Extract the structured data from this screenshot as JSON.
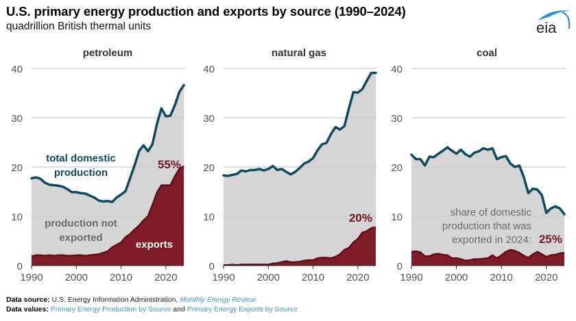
{
  "header": {
    "title": "U.S. primary energy production and exports by source (1990–2024)",
    "subtitle": "quadrillion British thermal units",
    "logo_text": "eia"
  },
  "colors": {
    "production_line": "#0d4a5f",
    "exports_fill": "#7f1c28",
    "exports_edge": "#5c1019",
    "not_exported_fill": "#d5d5d5",
    "gridline": "#dedede",
    "axis_text": "#555555",
    "panel_title": "#333333",
    "label_dark_blue": "#0d4a5f",
    "label_gray": "#6b6b6b",
    "label_red": "#6e1823",
    "link": "#3a9bd1"
  },
  "chart_data": [
    {
      "type": "area",
      "title": "petroleum",
      "xlabel": "",
      "ylabel": "",
      "x_range": [
        1990,
        2024
      ],
      "ylim": [
        0,
        40
      ],
      "yticks": [
        0,
        10,
        20,
        30,
        40
      ],
      "xticks": [
        1990,
        2000,
        2010,
        2020
      ],
      "grid": true,
      "x": [
        1990,
        1991,
        1992,
        1993,
        1994,
        1995,
        1996,
        1997,
        1998,
        1999,
        2000,
        2001,
        2002,
        2003,
        2004,
        2005,
        2006,
        2007,
        2008,
        2009,
        2010,
        2011,
        2012,
        2013,
        2014,
        2015,
        2016,
        2017,
        2018,
        2019,
        2020,
        2021,
        2022,
        2023,
        2024
      ],
      "series": [
        {
          "name": "total domestic production",
          "values": [
            17.7,
            17.9,
            17.6,
            16.8,
            16.4,
            16.3,
            16.2,
            16.0,
            15.5,
            14.9,
            14.9,
            14.7,
            14.6,
            14.2,
            13.8,
            13.2,
            13.0,
            13.1,
            12.9,
            13.8,
            14.4,
            15.1,
            17.7,
            20.3,
            23.2,
            24.4,
            23.2,
            24.6,
            28.7,
            31.9,
            30.3,
            30.4,
            32.5,
            35.2,
            36.6
          ]
        },
        {
          "name": "exports",
          "values": [
            1.9,
            2.1,
            2.1,
            2.0,
            2.1,
            2.0,
            2.1,
            2.1,
            2.0,
            2.0,
            2.1,
            2.1,
            2.0,
            2.1,
            2.2,
            2.3,
            2.6,
            2.9,
            3.7,
            4.2,
            4.7,
            5.8,
            6.4,
            7.3,
            8.1,
            9.2,
            10.0,
            12.3,
            14.8,
            16.3,
            16.3,
            16.3,
            18.1,
            19.6,
            20.2
          ]
        }
      ],
      "annotations": [
        {
          "text": "total domestic production",
          "series": "total domestic production"
        },
        {
          "text": "production not exported"
        },
        {
          "text": "exports",
          "series": "exports"
        },
        {
          "text": "55%",
          "note": "share exported in 2024"
        }
      ]
    },
    {
      "type": "area",
      "title": "natural gas",
      "xlabel": "",
      "ylabel": "",
      "x_range": [
        1990,
        2024
      ],
      "ylim": [
        0,
        40
      ],
      "yticks": [
        0,
        10,
        20,
        30,
        40
      ],
      "xticks": [
        1990,
        2000,
        2010,
        2020
      ],
      "grid": true,
      "x": [
        1990,
        1991,
        1992,
        1993,
        1994,
        1995,
        1996,
        1997,
        1998,
        1999,
        2000,
        2001,
        2002,
        2003,
        2004,
        2005,
        2006,
        2007,
        2008,
        2009,
        2010,
        2011,
        2012,
        2013,
        2014,
        2015,
        2016,
        2017,
        2018,
        2019,
        2020,
        2021,
        2022,
        2023,
        2024
      ],
      "series": [
        {
          "name": "total domestic production",
          "values": [
            18.3,
            18.2,
            18.4,
            18.6,
            19.3,
            19.1,
            19.4,
            19.4,
            19.6,
            19.3,
            19.6,
            20.2,
            19.4,
            19.6,
            19.0,
            18.5,
            19.0,
            19.8,
            20.7,
            21.1,
            21.8,
            23.4,
            24.6,
            24.9,
            26.7,
            28.1,
            27.6,
            28.3,
            31.9,
            35.2,
            35.1,
            35.8,
            37.5,
            39.1,
            39.1
          ]
        },
        {
          "name": "exports",
          "values": [
            0.1,
            0.1,
            0.2,
            0.1,
            0.2,
            0.2,
            0.2,
            0.2,
            0.2,
            0.2,
            0.2,
            0.4,
            0.5,
            0.7,
            0.9,
            0.7,
            0.7,
            0.8,
            1.0,
            1.1,
            1.1,
            1.5,
            1.6,
            1.6,
            1.5,
            1.8,
            2.3,
            3.2,
            3.6,
            4.7,
            5.4,
            6.7,
            7.0,
            7.6,
            7.8
          ]
        }
      ],
      "annotations": [
        {
          "text": "20%",
          "note": "share exported in 2024"
        }
      ]
    },
    {
      "type": "area",
      "title": "coal",
      "xlabel": "",
      "ylabel": "",
      "x_range": [
        1990,
        2024
      ],
      "ylim": [
        0,
        40
      ],
      "yticks": [
        0,
        10,
        20,
        30,
        40
      ],
      "xticks": [
        1990,
        2000,
        2010,
        2020
      ],
      "grid": true,
      "x": [
        1990,
        1991,
        1992,
        1993,
        1994,
        1995,
        1996,
        1997,
        1998,
        1999,
        2000,
        2001,
        2002,
        2003,
        2004,
        2005,
        2006,
        2007,
        2008,
        2009,
        2010,
        2011,
        2012,
        2013,
        2014,
        2015,
        2016,
        2017,
        2018,
        2019,
        2020,
        2021,
        2022,
        2023,
        2024
      ],
      "series": [
        {
          "name": "total domestic production",
          "values": [
            22.5,
            21.6,
            21.6,
            20.3,
            22.1,
            22.0,
            22.7,
            23.3,
            24.0,
            23.3,
            22.7,
            23.5,
            22.6,
            22.1,
            22.9,
            23.2,
            23.8,
            23.5,
            23.8,
            21.6,
            22.0,
            22.2,
            20.7,
            20.0,
            20.3,
            17.9,
            14.7,
            15.6,
            15.4,
            14.3,
            10.7,
            11.6,
            12.0,
            11.6,
            10.4
          ]
        },
        {
          "name": "exports",
          "values": [
            2.8,
            2.9,
            2.7,
            1.9,
            1.9,
            2.3,
            2.4,
            2.2,
            2.1,
            1.5,
            1.5,
            1.3,
            1.0,
            1.1,
            1.3,
            1.3,
            1.4,
            1.5,
            2.1,
            1.5,
            2.1,
            2.8,
            3.2,
            3.0,
            2.6,
            2.0,
            1.6,
            2.3,
            2.8,
            2.3,
            1.8,
            2.1,
            2.2,
            2.5,
            2.6
          ]
        }
      ],
      "annotations": [
        {
          "text": "share of domestic production that was exported in 2024:"
        },
        {
          "text": "25%",
          "note": "share exported in 2024"
        }
      ]
    }
  ],
  "labels": {
    "petroleum": {
      "total_line1": "total domestic",
      "total_line2": "production",
      "not_exported_line1": "production not",
      "not_exported_line2": "exported",
      "exports": "exports",
      "share": "55%"
    },
    "natural_gas": {
      "share": "20%"
    },
    "coal": {
      "share_line1": "share of domestic",
      "share_line2": "production that was",
      "share_line3": "exported in 2024:",
      "share": "25%"
    }
  },
  "footer": {
    "source_label": "Data source:",
    "source_text": "U.S. Energy Information Administration, ",
    "source_link": "Monthly Energy Review",
    "values_label": "Data values:",
    "values_link1": "Primary Energy Production by Source",
    "values_and": " and ",
    "values_link2": "Primary Energy Exports by Source"
  }
}
